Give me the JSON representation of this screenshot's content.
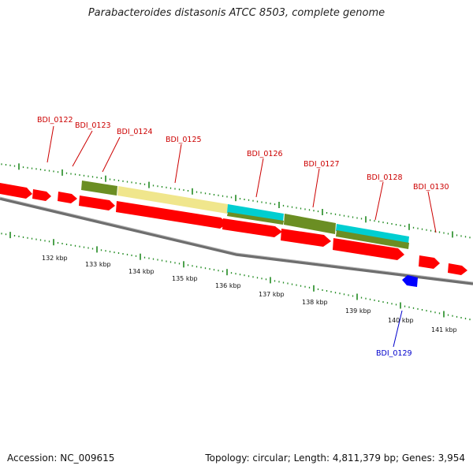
{
  "title": "Parabacteroides distasonis ATCC 8503, complete genome",
  "footer": {
    "accession": "Accession: NC_009615",
    "summary": "Topology: circular; Length: 4,811,379 bp; Genes: 3,954"
  },
  "colors": {
    "forward_cds": "#ff0000",
    "reverse_cds": "#0000ff",
    "cog_olive": "#6b8e23",
    "cog_khaki": "#f0e68c",
    "cog_cyan": "#00ced1",
    "ticks": "#228b22",
    "backbone": "#808080",
    "label_forward": "#cc0000",
    "label_reverse": "#0000cc"
  },
  "labels": {
    "forward": [
      "BDI_0122",
      "BDI_0123",
      "BDI_0124",
      "BDI_0125",
      "BDI_0126",
      "BDI_0127",
      "BDI_0128",
      "BDI_0130"
    ],
    "reverse": [
      "BDI_0129"
    ]
  },
  "scale": [
    "132 kbp",
    "133 kbp",
    "134 kbp",
    "135 kbp",
    "136 kbp",
    "137 kbp",
    "138 kbp",
    "139 kbp",
    "140 kbp",
    "141 kbp"
  ]
}
